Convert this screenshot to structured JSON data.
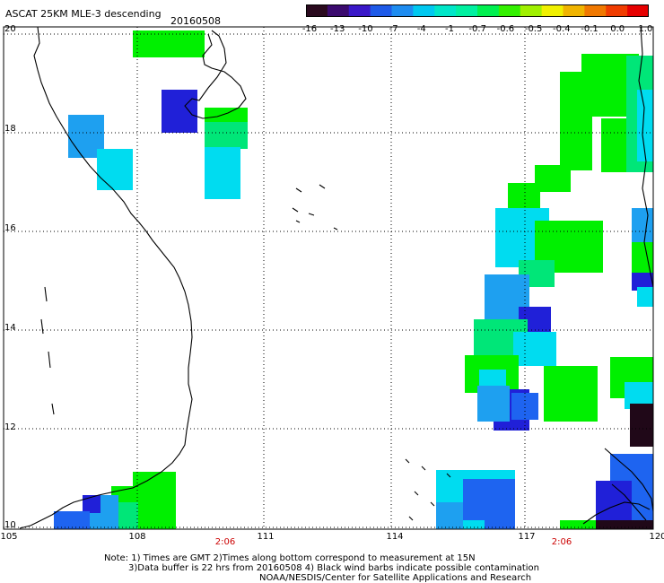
{
  "header": {
    "title": "ASCAT 25KM MLE-3 descending",
    "date": "20160508"
  },
  "colorbar": {
    "labels": [
      "-16",
      "-13",
      "-10",
      "-7",
      "-4",
      "-1",
      "-0.7",
      "-0.6",
      "-0.5",
      "-0.4",
      "-0.1",
      "0.0",
      "1.0"
    ],
    "colors": [
      "#2a0a1e",
      "#3b0a6e",
      "#3a18c8",
      "#1e5ae8",
      "#1e8cf0",
      "#00c8f0",
      "#00e6c8",
      "#00f0a0",
      "#00f050",
      "#33f000",
      "#a0f000",
      "#f0f000",
      "#f0b400",
      "#f07800",
      "#f03c00",
      "#e60000"
    ]
  },
  "axes": {
    "lat_labels": [
      "20",
      "18",
      "16",
      "14",
      "12",
      "10"
    ],
    "lon_labels": [
      "105",
      "108",
      "111",
      "114",
      "117",
      "120"
    ],
    "pass_times": [
      "2:06",
      "2:06"
    ]
  },
  "footer": {
    "line1": "Note: 1) Times are GMT 2)Times along bottom correspond to measurement at 15N",
    "line2": "3)Data buffer is 22 hrs from 20160508 4) Black wind barbs indicate possible contamination",
    "line3": "NOAA/NESDIS/Center for Satellite Applications and Research"
  },
  "palette": {
    "green": "#00f000",
    "teal_green": "#00e678",
    "cyan": "#00dcf0",
    "light_blue": "#1ea0f0",
    "blue": "#1e64f0",
    "dark_blue": "#2020d8",
    "black_purple": "#200818"
  }
}
